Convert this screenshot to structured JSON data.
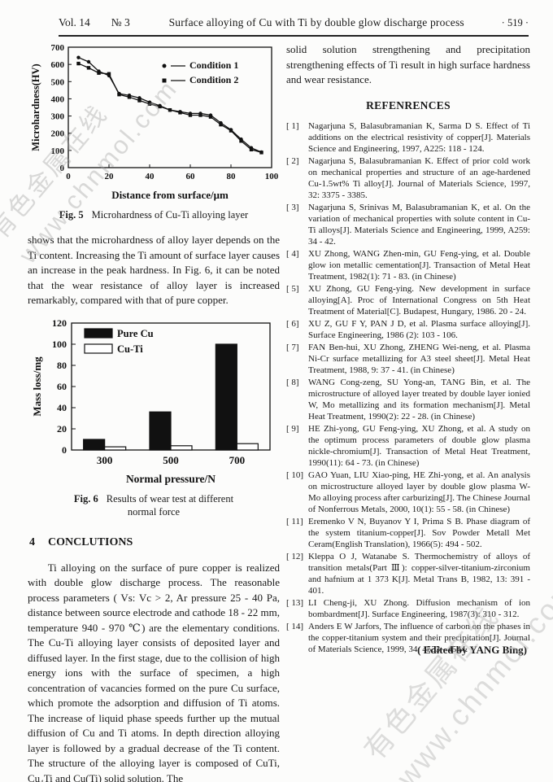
{
  "header": {
    "vol": "Vol. 14",
    "issue": "№ 3",
    "title": "Surface alloying of Cu with Ti by double glow discharge process",
    "pageno": "· 519 ·"
  },
  "watermarks": {
    "cn": "有色金属在线",
    "url": "www.chnmol.com"
  },
  "left_column": {
    "fig5_caption_label": "Fig. 5",
    "fig5_caption_text": "Microhardness of Cu-Ti alloying layer",
    "paragraph_1": "shows that the microhardness of alloy layer depends on the Ti content. Increasing the Ti amount of surface layer causes an increase in the peak hardness. In Fig. 6, it can be noted that the wear resistance of alloy layer is increased remarkably, compared with that of pure copper.",
    "fig6_caption_label": "Fig. 6",
    "fig6_caption_line1": "Results of wear test at different",
    "fig6_caption_line2": "normal force",
    "section_number": "4",
    "section_title": "CONCLUTIONS",
    "conclusion_paragraph": "Ti alloying on the surface of pure copper is realized with double glow discharge process. The reasonable process parameters ( Vs: Vc > 2, Ar pressure 25 - 40 Pa, distance between source electrode and cathode 18 - 22 mm, temperature 940 - 970 ℃) are the elementary conditions. The Cu-Ti alloying layer consists of deposited layer and diffused layer. In the first stage, due to the collision of high energy ions with the surface of specimen, a high concentration of vacancies formed on the pure Cu surface, which promote the adsorption and diffusion of Ti atoms. The increase of liquid phase speeds further up the mutual diffusion of Cu and Ti atoms. In depth direction alloying layer is followed by a gradual decrease of the Ti content. The structure of the alloying layer is composed of CuTi, Cu₄Ti and Cu(Ti) solid solution. The"
  },
  "right_column": {
    "paragraph": "solid solution strengthening and precipitation strengthening effects of Ti result in high surface hardness and wear resistance.",
    "references_title": "REFENRENCES",
    "references": [
      {
        "no": "[ 1]",
        "text": "Nagarjuna S, Balasubramanian K, Sarma D S. Effect of Ti additions on the electrical resistivity of copper[J]. Materials Science and Engineering, 1997, A225: 118 - 124."
      },
      {
        "no": "[ 2]",
        "text": "Nagarjuna S, Balasubramanian K. Effect of prior cold work on mechanical properties and structure of an age-hardened Cu-1.5wt% Ti alloy[J]. Journal of Materials Science, 1997, 32: 3375 - 3385."
      },
      {
        "no": "[ 3]",
        "text": "Nagarjuna S, Srinivas M, Balasubramanian K, et al. On the variation of mechanical properties with solute content in Cu-Ti alloys[J]. Materials Science and Engineering, 1999, A259: 34 - 42."
      },
      {
        "no": "[ 4]",
        "text": "XU Zhong, WANG Zhen-min, GU Feng-ying, et al. Double glow ion metallic cementation[J]. Transaction of Metal Heat Treatment, 1982(1): 71 - 83. (in Chinese)"
      },
      {
        "no": "[ 5]",
        "text": "XU Zhong, GU Feng-ying. New development in surface alloying[A]. Proc of International Congress on 5th Heat Treatment of Material[C]. Budapest, Hungary, 1986. 20 - 24."
      },
      {
        "no": "[ 6]",
        "text": "XU Z, GU F Y, PAN J D, et al. Plasma surface alloying[J]. Surface Engineering, 1986 (2): 103 - 106."
      },
      {
        "no": "[ 7]",
        "text": "FAN Ben-hui, XU Zhong, ZHENG Wei-neng, et al. Plasma Ni-Cr surface metallizing for A3 steel sheet[J]. Metal Heat Treatment, 1988, 9: 37 - 41. (in Chinese)"
      },
      {
        "no": "[ 8]",
        "text": "WANG Cong-zeng, SU Yong-an, TANG Bin, et al. The microstructure of alloyed layer treated by double layer ionied W, Mo metallizing and its formation mechanism[J]. Metal Heat Treatment, 1990(2): 22 - 28. (in Chinese)"
      },
      {
        "no": "[ 9]",
        "text": "HE Zhi-yong, GU Feng-ying, XU Zhong, et al. A study on the optimum process parameters of double glow plasma nickle-chromium[J]. Transaction of Metal Heat Treatment, 1990(11): 64 - 73. (in Chinese)"
      },
      {
        "no": "[ 10]",
        "text": "GAO Yuan, LIU Xiao-ping, HE Zhi-yong, et al. An analysis on microstructure alloyed layer by double glow plasma W-Mo alloying process after carburizing[J]. The Chinese Journal of Nonferrous Metals, 2000, 10(1): 55 - 58. (in Chinese)"
      },
      {
        "no": "[ 11]",
        "text": "Eremenko V N, Buyanov Y I, Prima S B. Phase diagram of the system titanium-copper[J]. Sov Powder Metall Met Ceram(English Translation), 1966(5): 494 - 502."
      },
      {
        "no": "[ 12]",
        "text": "Kleppa O J, Watanabe S. Thermochemistry of alloys of transition metals(Part Ⅲ): copper-silver-titanium-zirconium and hafnium at 1 373 K[J]. Metal Trans B, 1982, 13: 391 - 401."
      },
      {
        "no": "[ 13]",
        "text": "LI Cheng-ji, XU Zhong. Diffusion mechanism of ion bombardment[J]. Surface Engineering, 1987(3): 310 - 312."
      },
      {
        "no": "[ 14]",
        "text": "Anders E W Jarfors, The influence of carbon on the phases in the copper-titanium system and their precipitation[J]. Journal of Materials Science, 1999, 34: 4533 - 4544."
      }
    ],
    "edited_by": "( Edited by YANG Bing)"
  },
  "chart_data": [
    {
      "type": "line",
      "title": "",
      "xlabel": "Distance from surface/μm",
      "ylabel": "Microhardness(HV)",
      "xlim": [
        0,
        100
      ],
      "ylim": [
        0,
        700
      ],
      "xticks": [
        0,
        20,
        40,
        60,
        80,
        100
      ],
      "yticks": [
        0,
        100,
        200,
        300,
        400,
        500,
        600,
        700
      ],
      "grid": false,
      "legend_position": "top-right",
      "x": [
        5,
        10,
        15,
        20,
        25,
        30,
        35,
        40,
        45,
        50,
        55,
        60,
        65,
        70,
        75,
        80,
        85,
        90,
        95
      ],
      "series": [
        {
          "name": "Condition 1",
          "marker": "circle",
          "values": [
            640,
            615,
            560,
            535,
            430,
            420,
            405,
            380,
            360,
            335,
            325,
            315,
            315,
            305,
            260,
            220,
            165,
            115,
            90
          ]
        },
        {
          "name": "Condition 2",
          "marker": "square",
          "values": [
            605,
            580,
            550,
            545,
            425,
            410,
            390,
            370,
            355,
            335,
            320,
            305,
            305,
            295,
            250,
            215,
            155,
            105,
            88
          ]
        }
      ]
    },
    {
      "type": "bar",
      "title": "",
      "xlabel": "Normal pressure/N",
      "ylabel": "Mass loss/mg",
      "ylim": [
        0,
        120
      ],
      "yticks": [
        0,
        20,
        40,
        60,
        80,
        100,
        120
      ],
      "grid": false,
      "legend_position": "top-left",
      "categories": [
        "300",
        "500",
        "700"
      ],
      "series": [
        {
          "name": "Pure Cu",
          "fill": "#111111",
          "values": [
            10,
            36,
            100
          ]
        },
        {
          "name": "Cu-Ti",
          "fill": "#ffffff",
          "values": [
            3,
            4,
            6
          ]
        }
      ]
    }
  ]
}
